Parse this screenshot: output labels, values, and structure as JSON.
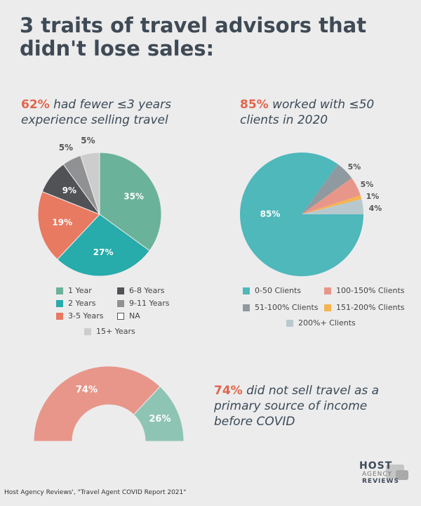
{
  "title": "3 traits of travel advisors that didn't lose sales:",
  "chart_data": [
    {
      "type": "pie",
      "caption_highlight": "62%",
      "caption_text": "had fewer ≤3 years experience selling travel",
      "categories": [
        "1 Year",
        "2 Years",
        "3-5 Years",
        "6-8 Years",
        "9-11 Years",
        "NA",
        "15+ Years"
      ],
      "values": [
        35,
        27,
        19,
        9,
        5,
        0,
        5
      ],
      "labels": [
        "35%",
        "27%",
        "19%",
        "9%",
        "5%",
        "",
        "5%"
      ],
      "colors": [
        "#6bb29a",
        "#27abab",
        "#e87a61",
        "#505256",
        "#8f9193",
        "#ffffff",
        "#cdcdcd"
      ]
    },
    {
      "type": "pie",
      "caption_highlight": "85%",
      "caption_text": "worked with ≤50 clients in 2020",
      "categories": [
        "0-50 Clients",
        "51-100% Clients",
        "100-150% Clients",
        "151-200% Clients",
        "200%+ Clients"
      ],
      "values": [
        85,
        5,
        5,
        1,
        4
      ],
      "labels": [
        "85%",
        "5%",
        "5%",
        "1%",
        "4%"
      ],
      "colors": [
        "#4eb8bb",
        "#8f9aa0",
        "#e8968a",
        "#f6b44e",
        "#b7c9ce"
      ]
    },
    {
      "type": "pie",
      "subtype": "half-donut",
      "caption_highlight": "74%",
      "caption_text": "did not sell travel as a primary source of income before COVID",
      "values": [
        74,
        26
      ],
      "labels": [
        "74%",
        "26%"
      ],
      "colors": [
        "#e8968a",
        "#8ec4b4"
      ]
    }
  ],
  "source": "Host Agency Reviews', \"Travel Agent COVID Report 2021\"",
  "logo": {
    "line1": "HOST",
    "line2": "AGENCY",
    "line3": "REVIEWS"
  }
}
